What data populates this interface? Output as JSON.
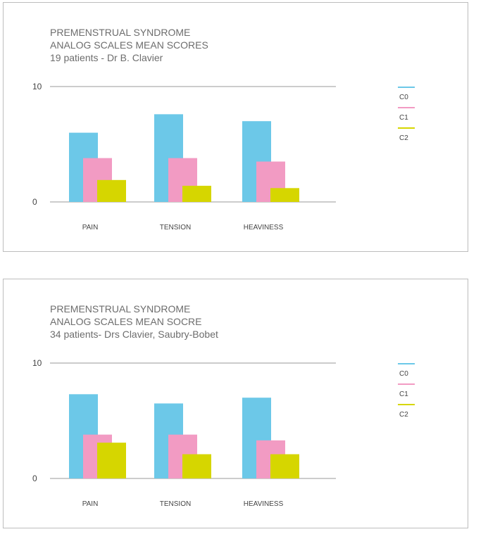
{
  "colors": {
    "C0": "#6cc8e8",
    "C1": "#f29bc3",
    "C2": "#d6d600",
    "axis": "#999999"
  },
  "chart_data": [
    {
      "type": "bar",
      "title_lines": [
        "PREMENSTRUAL SYNDROME",
        "ANALOG SCALES MEAN SCORES",
        "19 patients - Dr B. Clavier"
      ],
      "categories": [
        "PAIN",
        "TENSION",
        "HEAVINESS"
      ],
      "series": [
        {
          "name": "C0",
          "values": [
            6.0,
            7.6,
            7.0
          ]
        },
        {
          "name": "C1",
          "values": [
            3.8,
            3.8,
            3.5
          ]
        },
        {
          "name": "C2",
          "values": [
            1.9,
            1.4,
            1.2
          ]
        }
      ],
      "yticks": [
        "0",
        "10"
      ],
      "ylim": [
        0,
        10
      ],
      "grid": true,
      "legend_placement": "right"
    },
    {
      "type": "bar",
      "title_lines": [
        "PREMENSTRUAL SYNDROME",
        "ANALOG SCALES MEAN SOCRE",
        "34 patients- Drs Clavier, Saubry-Bobet"
      ],
      "categories": [
        "PAIN",
        "TENSION",
        "HEAVINESS"
      ],
      "series": [
        {
          "name": "C0",
          "values": [
            7.3,
            6.5,
            7.0
          ]
        },
        {
          "name": "C1",
          "values": [
            3.8,
            3.8,
            3.3
          ]
        },
        {
          "name": "C2",
          "values": [
            3.1,
            2.1,
            2.1
          ]
        }
      ],
      "yticks": [
        "0",
        "10"
      ],
      "ylim": [
        0,
        10
      ],
      "grid": true,
      "legend_placement": "right"
    }
  ]
}
